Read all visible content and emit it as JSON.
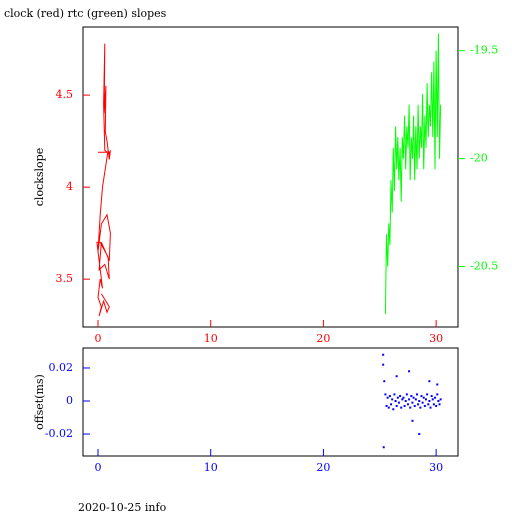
{
  "footer": "2020-10-25 info",
  "chart_data": [
    {
      "type": "line",
      "title": "clock (red) rtc (green) slopes",
      "ylabel": "clockslope",
      "xlim": [
        -1.33,
        31.94
      ],
      "ylim": [
        3.24,
        4.87
      ],
      "y2lim": [
        -20.78,
        -19.39
      ],
      "xticks": [
        0,
        10,
        20,
        30
      ],
      "yticks": [
        3.5,
        4,
        4.5
      ],
      "y2ticks": [
        -20.5,
        -20,
        -19.5
      ],
      "series": [
        {
          "color": "#ff0000",
          "x": [
            0.0,
            0.8,
            0.6,
            0.5,
            0.6,
            0.55,
            0.7,
            0.65,
            0.8,
            1.0,
            1.1,
            1.0,
            0.9,
            0.4,
            0.2,
            0.1,
            0.0,
            0.3,
            0.8,
            1.1,
            1.0,
            0.3,
            0.1,
            0.6,
            1.0,
            0.9,
            0.2,
            -0.1,
            0.4,
            0.2,
            0.0,
            0.3,
            0.1,
            0.5,
            0.8,
            1.0,
            0.3
          ],
          "values": [
            4.19,
            4.19,
            4.2,
            4.45,
            4.78,
            4.4,
            4.55,
            4.3,
            4.25,
            4.15,
            4.2,
            4.18,
            4.2,
            4.0,
            3.85,
            3.75,
            3.65,
            3.8,
            3.85,
            3.75,
            3.6,
            3.7,
            3.55,
            3.58,
            3.5,
            3.62,
            3.7,
            3.7,
            3.45,
            3.5,
            3.4,
            3.35,
            3.3,
            3.38,
            3.32,
            3.35,
            3.42
          ]
        },
        {
          "color": "#00ff00",
          "axis": "y2",
          "x": [
            25.5,
            25.6,
            25.7,
            25.8,
            25.9,
            26.0,
            26.1,
            26.2,
            26.3,
            26.4,
            26.5,
            26.6,
            26.7,
            26.8,
            26.9,
            27.0,
            27.1,
            27.2,
            27.3,
            27.4,
            27.5,
            27.6,
            27.7,
            27.8,
            27.9,
            28.0,
            28.1,
            28.2,
            28.3,
            28.4,
            28.5,
            28.6,
            28.7,
            28.8,
            28.9,
            29.0,
            29.1,
            29.2,
            29.3,
            29.4,
            29.5,
            29.6,
            29.7,
            29.8,
            29.9,
            30.0,
            30.1,
            30.2,
            30.3,
            30.4
          ],
          "values": [
            -20.72,
            -20.35,
            -20.5,
            -20.3,
            -20.4,
            -20.1,
            -20.25,
            -19.95,
            -20.15,
            -19.85,
            -20.05,
            -19.9,
            -20.1,
            -19.95,
            -20.2,
            -19.9,
            -20.0,
            -19.8,
            -20.05,
            -19.85,
            -19.95,
            -19.75,
            -20.1,
            -19.9,
            -20.0,
            -19.8,
            -20.1,
            -19.85,
            -20.05,
            -19.75,
            -20.0,
            -19.85,
            -19.95,
            -19.7,
            -20.05,
            -19.8,
            -19.95,
            -19.65,
            -19.9,
            -19.75,
            -19.85,
            -19.6,
            -19.9,
            -19.55,
            -20.05,
            -19.5,
            -19.9,
            -19.42,
            -20.0,
            -19.75
          ]
        }
      ]
    },
    {
      "type": "scatter",
      "ylabel": "offset(ms)",
      "xlim": [
        -1.33,
        31.94
      ],
      "ylim": [
        -0.0333,
        0.0321
      ],
      "xticks": [
        0,
        10,
        20,
        30
      ],
      "yticks": [
        -0.02,
        0,
        0.02
      ],
      "series": [
        {
          "color": "#0000ff",
          "x": [
            25.3,
            25.35,
            25.4,
            25.5,
            25.6,
            25.7,
            25.8,
            25.9,
            26.0,
            26.1,
            26.2,
            26.3,
            26.4,
            26.5,
            26.6,
            26.7,
            26.8,
            26.9,
            27.0,
            27.1,
            27.2,
            27.3,
            27.4,
            27.5,
            27.6,
            27.7,
            27.8,
            27.9,
            28.0,
            28.1,
            28.2,
            28.3,
            28.4,
            28.5,
            28.6,
            28.7,
            28.8,
            28.9,
            29.0,
            29.1,
            29.2,
            29.3,
            29.4,
            29.5,
            29.6,
            29.7,
            29.8,
            29.9,
            30.0,
            30.1,
            30.2,
            30.3,
            30.4,
            26.5,
            27.6,
            28.5,
            29.4,
            25.3,
            30.1,
            27.9
          ],
          "values": [
            0.028,
            -0.028,
            0.012,
            0.004,
            -0.003,
            0.002,
            -0.004,
            0.003,
            -0.002,
            0.001,
            -0.005,
            0.004,
            0.0,
            -0.003,
            0.002,
            -0.001,
            0.003,
            -0.004,
            0.001,
            0.002,
            -0.003,
            0.0,
            0.004,
            -0.002,
            0.001,
            -0.004,
            0.003,
            -0.001,
            0.002,
            -0.003,
            0.001,
            0.004,
            -0.002,
            0.0,
            -0.004,
            0.003,
            -0.001,
            0.002,
            -0.003,
            0.001,
            0.004,
            -0.002,
            0.0,
            -0.004,
            0.003,
            0.001,
            -0.002,
            0.002,
            -0.003,
            0.004,
            0.0,
            -0.002,
            0.001,
            0.015,
            0.018,
            -0.02,
            0.012,
            0.022,
            0.01,
            -0.012
          ]
        }
      ]
    }
  ]
}
